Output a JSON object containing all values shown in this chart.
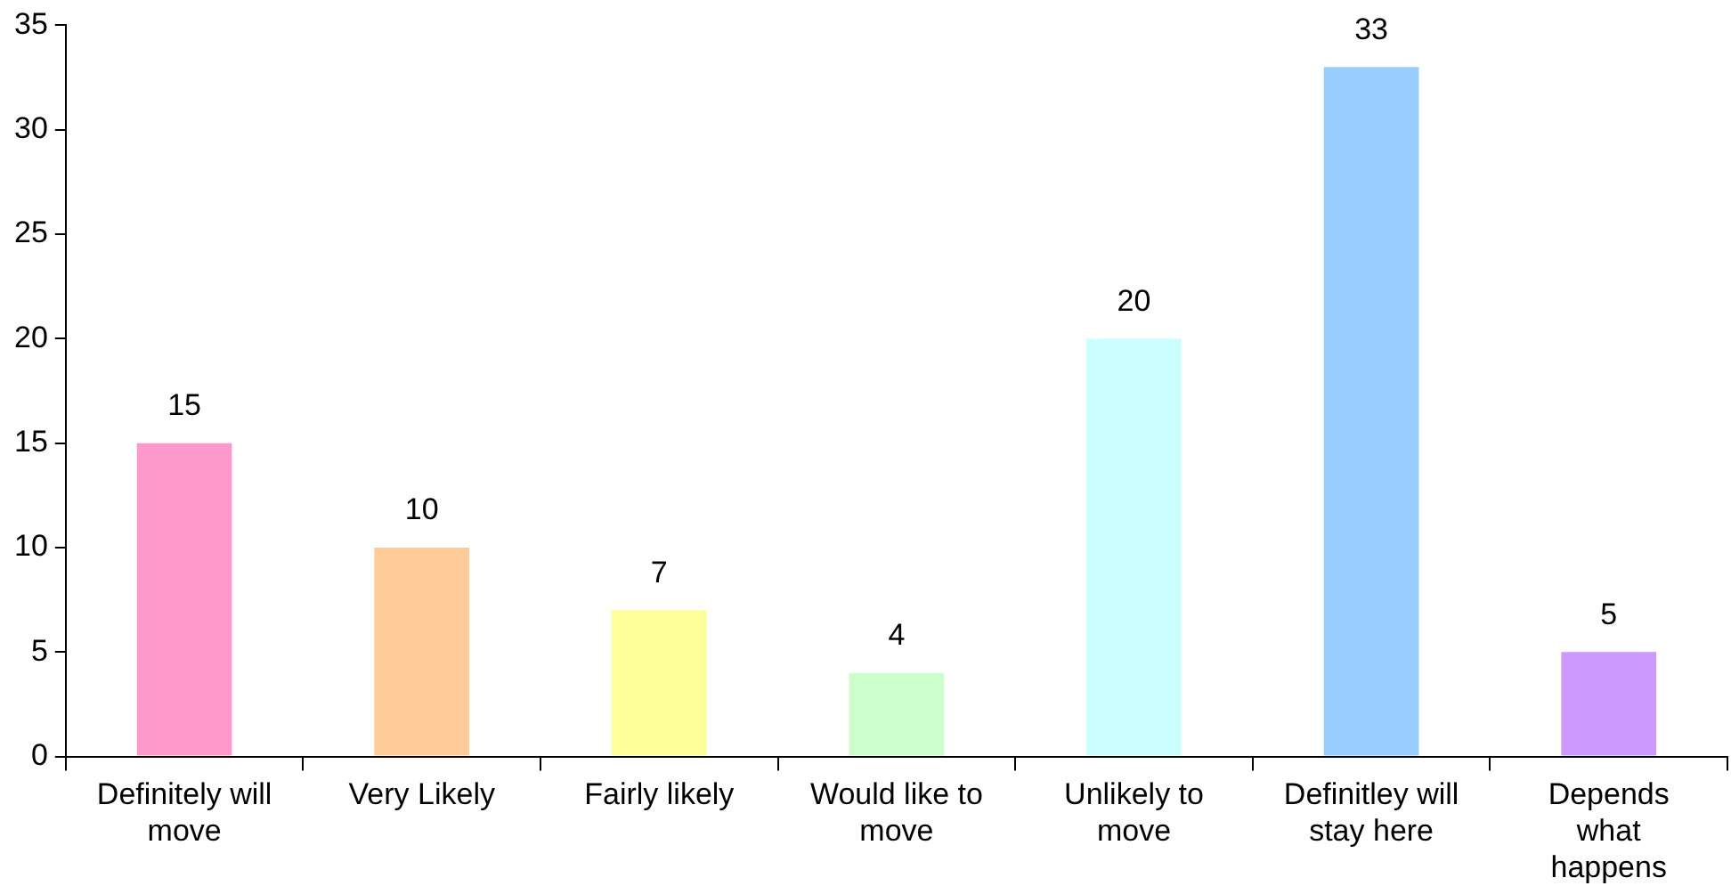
{
  "chart_data": {
    "type": "bar",
    "categories": [
      "Definitely will move",
      "Very Likely",
      "Fairly likely",
      "Would like to move",
      "Unlikely to move",
      "Definitley will stay here",
      "Depends what happens"
    ],
    "values": [
      15,
      10,
      7,
      4,
      20,
      33,
      5
    ],
    "colors": [
      "#ff99cc",
      "#ffcc99",
      "#ffff99",
      "#ccffcc",
      "#ccffff",
      "#99ccff",
      "#cc99ff"
    ],
    "ylim": [
      0,
      35
    ],
    "yticks": [
      0,
      5,
      10,
      15,
      20,
      25,
      30,
      35
    ],
    "grid": false,
    "legend": false,
    "data_labels": true
  }
}
